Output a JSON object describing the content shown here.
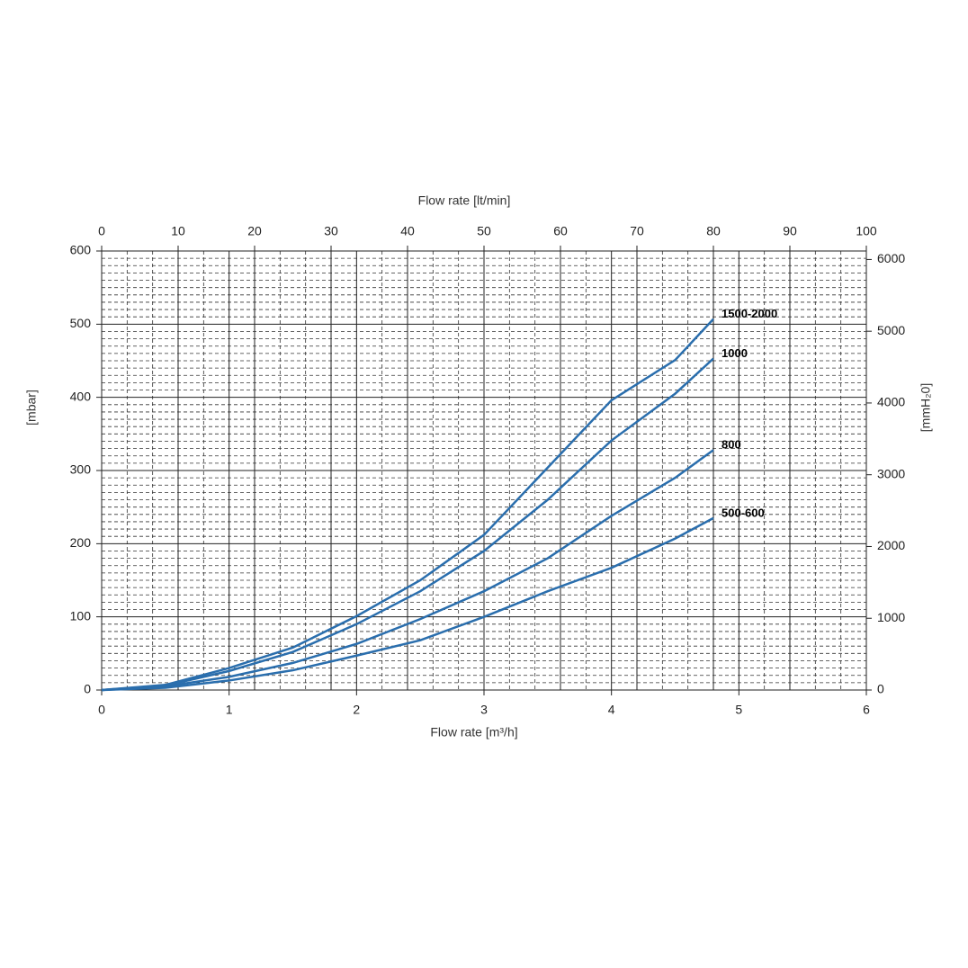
{
  "chart_data": {
    "type": "line",
    "x_label": "Flow rate [m³/h]",
    "x2_label": "Flow rate [lt/min]",
    "y_label": "[mbar]",
    "y2_label": "[mmH₂0]",
    "x": [
      0,
      0.5,
      1,
      1.5,
      2,
      2.5,
      3,
      3.5,
      4,
      4.5,
      4.8
    ],
    "xlim": [
      0,
      6
    ],
    "xticks": [
      0,
      1,
      2,
      3,
      4,
      5,
      6
    ],
    "x2lim": [
      0,
      100
    ],
    "x2ticks": [
      0,
      10,
      20,
      30,
      40,
      50,
      60,
      70,
      80,
      90,
      100
    ],
    "ylim": [
      0,
      600
    ],
    "yticks": [
      0,
      100,
      200,
      300,
      400,
      500,
      600
    ],
    "y2lim": [
      0,
      6118
    ],
    "y2ticks": [
      0,
      1000,
      2000,
      3000,
      4000,
      5000,
      6000
    ],
    "grid": true,
    "series": [
      {
        "name": "1500-2000",
        "color": "#2a6ead",
        "values": [
          0,
          7,
          30,
          58,
          101,
          150,
          212,
          304,
          396,
          451,
          507
        ]
      },
      {
        "name": "1000",
        "color": "#2a6ead",
        "values": [
          0,
          6,
          26,
          52,
          90,
          135,
          190,
          260,
          341,
          405,
          453
        ]
      },
      {
        "name": "800",
        "color": "#2a6ead",
        "values": [
          0,
          5,
          18,
          37,
          63,
          97,
          135,
          180,
          238,
          290,
          328
        ]
      },
      {
        "name": "500-600",
        "color": "#2a6ead",
        "values": [
          0,
          3,
          13,
          27,
          47,
          68,
          100,
          135,
          167,
          207,
          235
        ]
      }
    ]
  }
}
